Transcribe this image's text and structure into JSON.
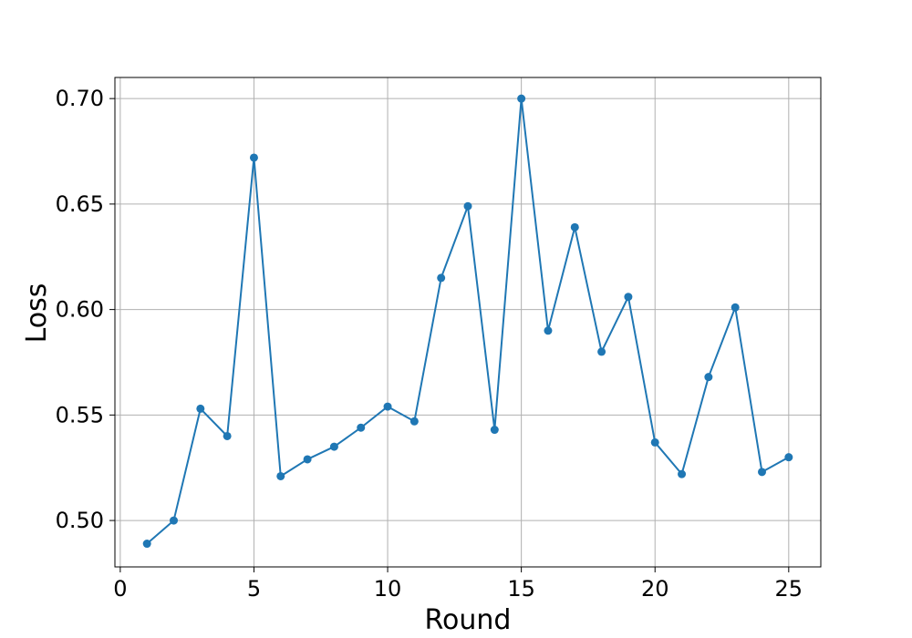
{
  "chart_data": {
    "type": "line",
    "title": "",
    "xlabel": "Round",
    "ylabel": "Loss",
    "xlim": [
      -0.2,
      26.2
    ],
    "ylim": [
      0.478,
      0.71
    ],
    "grid": true,
    "xticks": [
      0,
      5,
      10,
      15,
      20,
      25
    ],
    "xtick_labels": [
      "0",
      "5",
      "10",
      "15",
      "20",
      "25"
    ],
    "yticks": [
      0.5,
      0.55,
      0.6,
      0.65,
      0.7
    ],
    "ytick_labels": [
      "0.50",
      "0.55",
      "0.60",
      "0.65",
      "0.70"
    ],
    "series": [
      {
        "color": "#1f77b4",
        "x": [
          1,
          2,
          3,
          4,
          5,
          6,
          7,
          8,
          9,
          10,
          11,
          12,
          13,
          14,
          15,
          16,
          17,
          18,
          19,
          20,
          21,
          22,
          23,
          24,
          25
        ],
        "y": [
          0.489,
          0.5,
          0.553,
          0.54,
          0.672,
          0.521,
          0.529,
          0.535,
          0.544,
          0.554,
          0.547,
          0.615,
          0.649,
          0.543,
          0.7,
          0.59,
          0.639,
          0.58,
          0.606,
          0.537,
          0.522,
          0.568,
          0.601,
          0.523,
          0.53
        ]
      }
    ]
  }
}
